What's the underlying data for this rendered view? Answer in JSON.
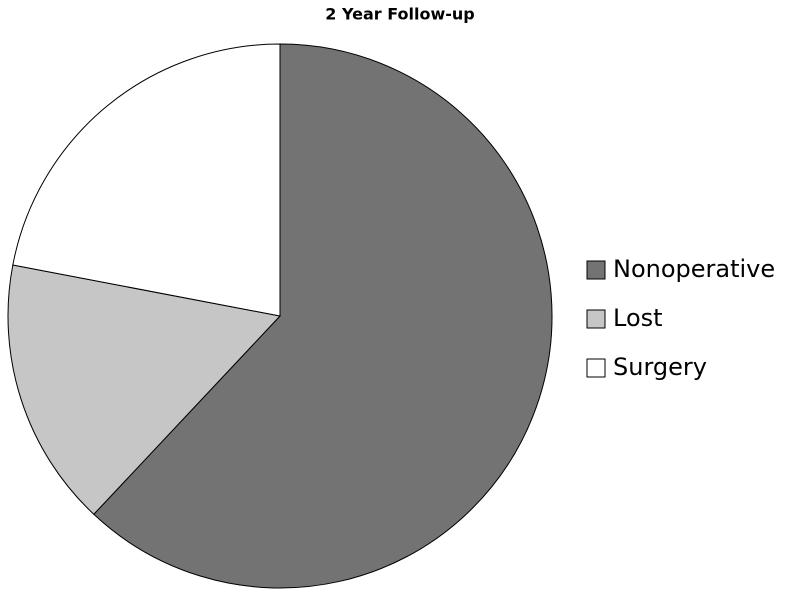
{
  "chart_data": {
    "type": "pie",
    "title": "2 Year Follow-up",
    "categories": [
      "Nonoperative",
      "Lost",
      "Surgery"
    ],
    "values": [
      62,
      16,
      22
    ],
    "colors": [
      "#737373",
      "#c6c6c6",
      "#ffffff"
    ],
    "legend": "right"
  }
}
